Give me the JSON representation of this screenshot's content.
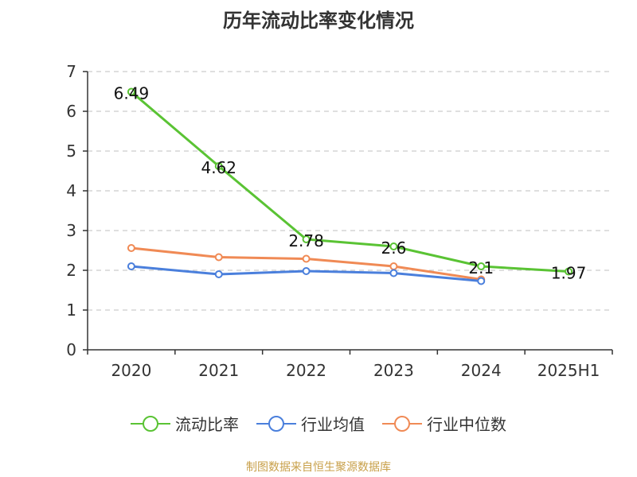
{
  "title": "历年流动比率变化情况",
  "source": "制图数据来自恒生聚源数据库",
  "chart_data": {
    "type": "line",
    "categories": [
      "2020",
      "2021",
      "2022",
      "2023",
      "2024",
      "2025H1"
    ],
    "ylim": [
      0,
      7
    ],
    "yticks": [
      0,
      1,
      2,
      3,
      4,
      5,
      6,
      7
    ],
    "grid": true,
    "legend_position": "bottom",
    "series": [
      {
        "name": "流动比率",
        "color": "#5ac334",
        "values": [
          6.49,
          4.62,
          2.78,
          2.6,
          2.1,
          1.97
        ],
        "labels": [
          "6.49",
          "4.62",
          "2.78",
          "2.6",
          "2.1",
          "1.97"
        ]
      },
      {
        "name": "行业均值",
        "color": "#4a7fdc",
        "values": [
          2.1,
          1.9,
          1.98,
          1.93,
          1.73,
          null
        ]
      },
      {
        "name": "行业中位数",
        "color": "#f08a55",
        "values": [
          2.56,
          2.33,
          2.29,
          2.1,
          1.77,
          null
        ]
      }
    ]
  }
}
